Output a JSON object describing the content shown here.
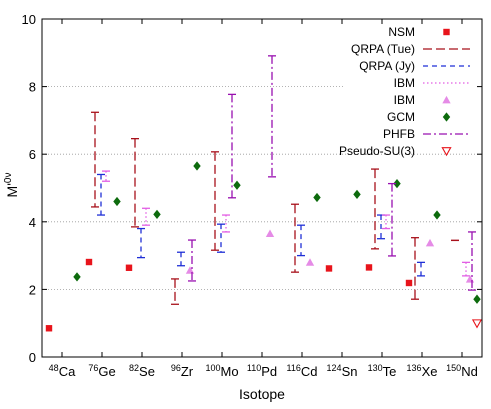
{
  "chart_data": {
    "type": "scatter",
    "title": "",
    "xlabel": "Isotope",
    "ylabel": "M'0ν",
    "ylabel_main": "M'",
    "ylabel_sup": "0ν",
    "ylim": [
      0,
      10
    ],
    "yticks": [
      0,
      2,
      4,
      6,
      8,
      10
    ],
    "grid": "horizontal dotted lines at 2, 4, 6, 8 (partial)",
    "legend_placement": "top-right",
    "categories": [
      {
        "mass": "48",
        "symbol": "Ca"
      },
      {
        "mass": "76",
        "symbol": "Ge"
      },
      {
        "mass": "82",
        "symbol": "Se"
      },
      {
        "mass": "96",
        "symbol": "Zr"
      },
      {
        "mass": "100",
        "symbol": "Mo"
      },
      {
        "mass": "110",
        "symbol": "Pd"
      },
      {
        "mass": "116",
        "symbol": "Cd"
      },
      {
        "mass": "124",
        "symbol": "Sn"
      },
      {
        "mass": "130",
        "symbol": "Te"
      },
      {
        "mass": "136",
        "symbol": "Xe"
      },
      {
        "mass": "150",
        "symbol": "Nd"
      }
    ],
    "series": [
      {
        "name": "NSM",
        "kind": "point",
        "marker": "square",
        "color": "#e8141b",
        "points": [
          [
            0,
            0.85
          ],
          [
            1,
            2.81
          ],
          [
            2,
            2.64
          ],
          [
            7,
            2.62
          ],
          [
            8,
            2.65
          ],
          [
            9,
            2.19
          ]
        ]
      },
      {
        "name": "QRPA (Tue)",
        "kind": "range",
        "style": "longdash",
        "color": "#a8111b",
        "ranges": [
          [
            1,
            4.44,
            7.24
          ],
          [
            2,
            3.85,
            6.46
          ],
          [
            3,
            1.56,
            2.31
          ],
          [
            4,
            3.16,
            6.07
          ],
          [
            6,
            2.51,
            4.52
          ],
          [
            8,
            3.2,
            5.56
          ],
          [
            9,
            1.71,
            3.53
          ],
          [
            10,
            3.45,
            3.45
          ]
        ]
      },
      {
        "name": "QRPA (Jy)",
        "kind": "range",
        "style": "dash",
        "color": "#1f2fd6",
        "ranges": [
          [
            1,
            4.2,
            5.4
          ],
          [
            2,
            2.94,
            3.8
          ],
          [
            3,
            2.7,
            3.1
          ],
          [
            4,
            3.1,
            3.93
          ],
          [
            6,
            3.0,
            3.9
          ],
          [
            8,
            3.5,
            4.2
          ],
          [
            9,
            2.4,
            2.8
          ]
        ]
      },
      {
        "name": "IBM",
        "kind": "range",
        "style": "dot",
        "color": "#e25ee4",
        "ranges": [
          [
            1,
            5.2,
            5.5
          ],
          [
            2,
            3.9,
            4.4
          ],
          [
            4,
            3.7,
            4.2
          ],
          [
            8,
            3.8,
            4.2
          ],
          [
            10,
            2.4,
            2.8
          ]
        ]
      },
      {
        "name": "IBM",
        "kind": "point",
        "marker": "triangle",
        "color": "#e58be6",
        "points": [
          [
            3,
            2.56
          ],
          [
            5,
            3.65
          ],
          [
            6,
            2.8
          ],
          [
            9,
            3.37
          ],
          [
            10,
            2.3
          ]
        ]
      },
      {
        "name": "GCM",
        "kind": "point",
        "marker": "diamond",
        "color": "#0d6b0d",
        "points": [
          [
            0,
            2.37
          ],
          [
            1,
            4.6
          ],
          [
            2,
            4.22
          ],
          [
            3,
            5.65
          ],
          [
            4,
            5.08
          ],
          [
            6,
            4.72
          ],
          [
            7,
            4.81
          ],
          [
            8,
            5.13
          ],
          [
            9,
            4.2
          ],
          [
            10,
            1.71
          ]
        ]
      },
      {
        "name": "PHFB",
        "kind": "range",
        "style": "dashdot",
        "color": "#9910b0",
        "ranges": [
          [
            3,
            2.25,
            3.46
          ],
          [
            4,
            4.71,
            7.77
          ],
          [
            5,
            5.33,
            8.91
          ],
          [
            8,
            2.99,
            5.13
          ],
          [
            10,
            1.98,
            3.7
          ]
        ]
      },
      {
        "name": "Pseudo-SU(3)",
        "kind": "point",
        "marker": "triangle-down",
        "color": "#e8141b",
        "points": [
          [
            10,
            1.0
          ]
        ]
      }
    ]
  }
}
